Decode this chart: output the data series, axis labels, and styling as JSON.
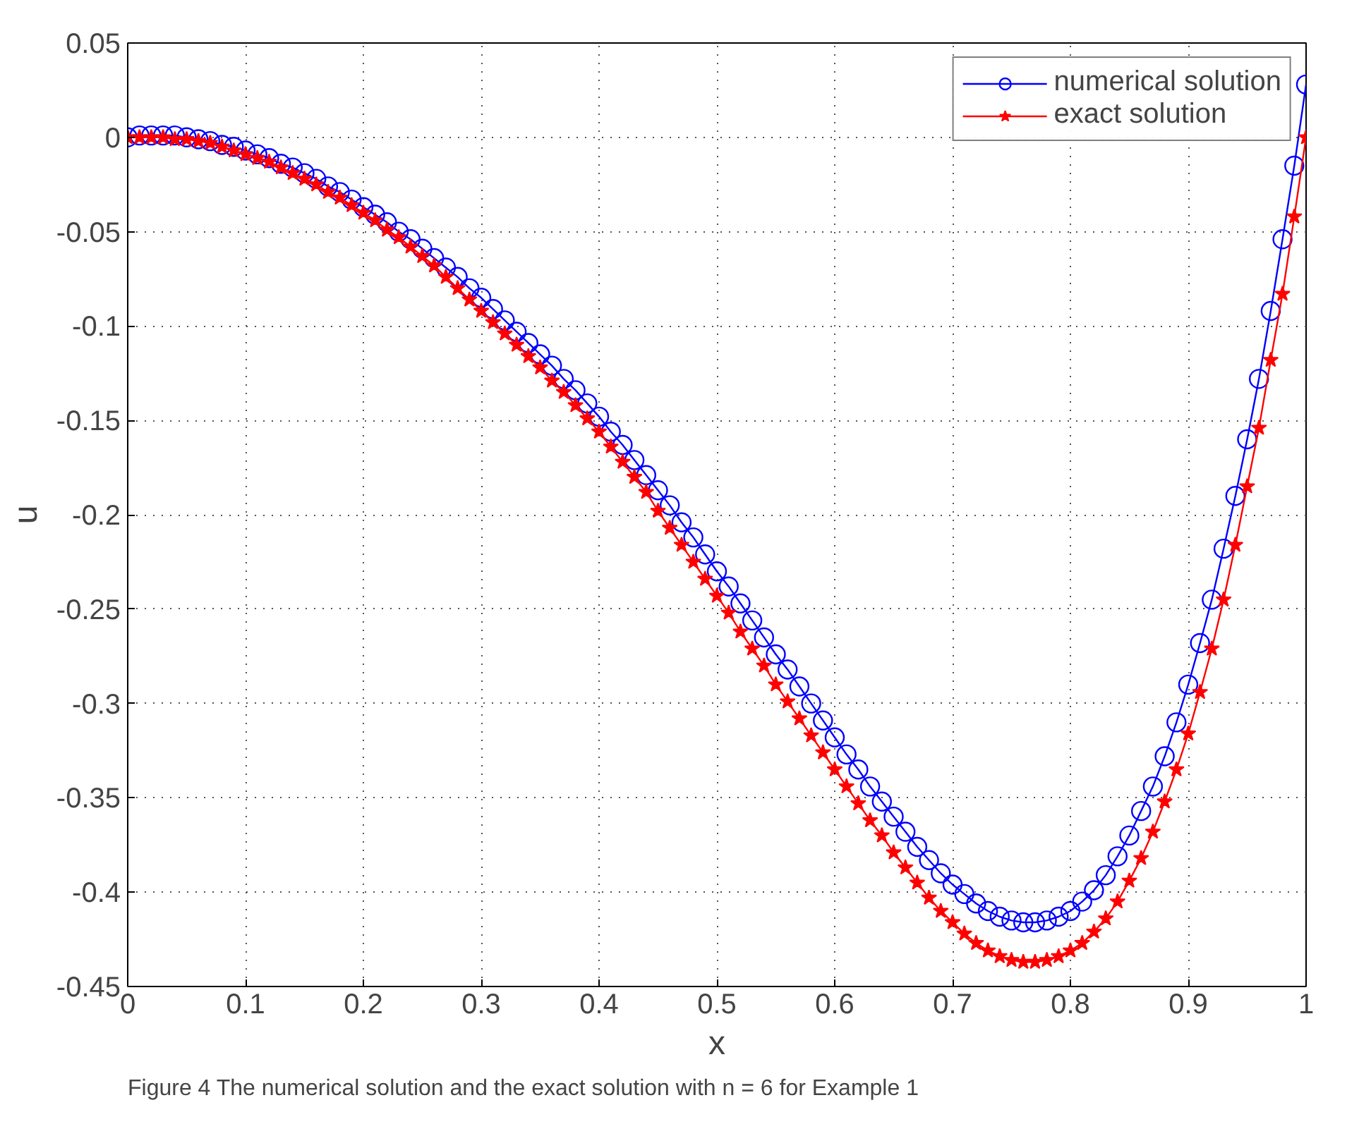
{
  "chart_data": {
    "type": "line",
    "xlabel": "x",
    "ylabel": "u",
    "annotations": [
      "Figure 4  The numerical solution and the exact solution with n = 6 for Example 1"
    ],
    "x": [
      0,
      0.01,
      0.02,
      0.03,
      0.04,
      0.05,
      0.06,
      0.07,
      0.08,
      0.09,
      0.1,
      0.11,
      0.12,
      0.13,
      0.14,
      0.15,
      0.16,
      0.17,
      0.18,
      0.19,
      0.2,
      0.21,
      0.22,
      0.23,
      0.24,
      0.25,
      0.26,
      0.27,
      0.28,
      0.29,
      0.3,
      0.31,
      0.32,
      0.33,
      0.34,
      0.35,
      0.36,
      0.37,
      0.38,
      0.39,
      0.4,
      0.41,
      0.42,
      0.43,
      0.44,
      0.45,
      0.46,
      0.47,
      0.48,
      0.49,
      0.5,
      0.51,
      0.52,
      0.53,
      0.54,
      0.55,
      0.56,
      0.57,
      0.58,
      0.59,
      0.6,
      0.61,
      0.62,
      0.63,
      0.64,
      0.65,
      0.66,
      0.67,
      0.68,
      0.69,
      0.7,
      0.71,
      0.72,
      0.73,
      0.74,
      0.75,
      0.76,
      0.77,
      0.78,
      0.79,
      0.8,
      0.81,
      0.82,
      0.83,
      0.84,
      0.85,
      0.86,
      0.87,
      0.88,
      0.89,
      0.9,
      0.91,
      0.92,
      0.93,
      0.94,
      0.95,
      0.96,
      0.97,
      0.98,
      0.99,
      1
    ],
    "series": [
      {
        "name": "numerical solution",
        "color": "#0000ff",
        "marker": "circle",
        "values": [
          0,
          0.001,
          0.001,
          0.001,
          0.001,
          0,
          -0.001,
          -0.002,
          -0.004,
          -0.005,
          -0.007,
          -0.009,
          -0.011,
          -0.014,
          -0.016,
          -0.019,
          -0.022,
          -0.026,
          -0.029,
          -0.033,
          -0.037,
          -0.041,
          -0.045,
          -0.05,
          -0.054,
          -0.059,
          -0.064,
          -0.069,
          -0.074,
          -0.08,
          -0.085,
          -0.091,
          -0.097,
          -0.103,
          -0.109,
          -0.115,
          -0.121,
          -0.128,
          -0.134,
          -0.141,
          -0.148,
          -0.156,
          -0.163,
          -0.171,
          -0.179,
          -0.187,
          -0.195,
          -0.204,
          -0.212,
          -0.221,
          -0.23,
          -0.238,
          -0.247,
          -0.256,
          -0.265,
          -0.274,
          -0.282,
          -0.291,
          -0.3,
          -0.309,
          -0.318,
          -0.327,
          -0.335,
          -0.344,
          -0.352,
          -0.36,
          -0.368,
          -0.376,
          -0.383,
          -0.39,
          -0.396,
          -0.401,
          -0.406,
          -0.41,
          -0.413,
          -0.415,
          -0.416,
          -0.416,
          -0.415,
          -0.413,
          -0.41,
          -0.405,
          -0.399,
          -0.391,
          -0.381,
          -0.37,
          -0.357,
          -0.344,
          -0.328,
          -0.31,
          -0.29,
          -0.268,
          -0.245,
          -0.218,
          -0.19,
          -0.16,
          -0.128,
          -0.092,
          -0.054,
          -0.015,
          0.028
        ]
      },
      {
        "name": "exact solution",
        "color": "#ff0000",
        "marker": "star",
        "values": [
          0,
          0,
          0,
          0,
          -0.001,
          -0.001,
          -0.002,
          -0.003,
          -0.005,
          -0.007,
          -0.009,
          -0.011,
          -0.013,
          -0.016,
          -0.019,
          -0.022,
          -0.025,
          -0.029,
          -0.032,
          -0.036,
          -0.04,
          -0.044,
          -0.049,
          -0.053,
          -0.058,
          -0.063,
          -0.068,
          -0.074,
          -0.08,
          -0.086,
          -0.092,
          -0.098,
          -0.104,
          -0.11,
          -0.116,
          -0.122,
          -0.129,
          -0.135,
          -0.142,
          -0.149,
          -0.156,
          -0.164,
          -0.172,
          -0.18,
          -0.188,
          -0.198,
          -0.207,
          -0.216,
          -0.225,
          -0.234,
          -0.243,
          -0.252,
          -0.262,
          -0.271,
          -0.28,
          -0.29,
          -0.299,
          -0.308,
          -0.317,
          -0.326,
          -0.335,
          -0.344,
          -0.353,
          -0.362,
          -0.37,
          -0.379,
          -0.387,
          -0.395,
          -0.403,
          -0.41,
          -0.416,
          -0.422,
          -0.427,
          -0.431,
          -0.434,
          -0.436,
          -0.437,
          -0.437,
          -0.436,
          -0.434,
          -0.431,
          -0.427,
          -0.421,
          -0.414,
          -0.405,
          -0.394,
          -0.382,
          -0.368,
          -0.352,
          -0.335,
          -0.316,
          -0.294,
          -0.271,
          -0.245,
          -0.216,
          -0.185,
          -0.154,
          -0.118,
          -0.083,
          -0.042,
          0
        ]
      }
    ],
    "xlim": [
      0,
      1
    ],
    "xticks": [
      0,
      0.1,
      0.2,
      0.3,
      0.4,
      0.5,
      0.6,
      0.7,
      0.8,
      0.9,
      1
    ],
    "ylim": [
      -0.45,
      0.05
    ],
    "yticks": [
      -0.45,
      -0.4,
      -0.35,
      -0.3,
      -0.25,
      -0.2,
      -0.15,
      -0.1,
      -0.05,
      0,
      0.05
    ],
    "grid": true,
    "legend": "top right",
    "line_style": "solid"
  }
}
